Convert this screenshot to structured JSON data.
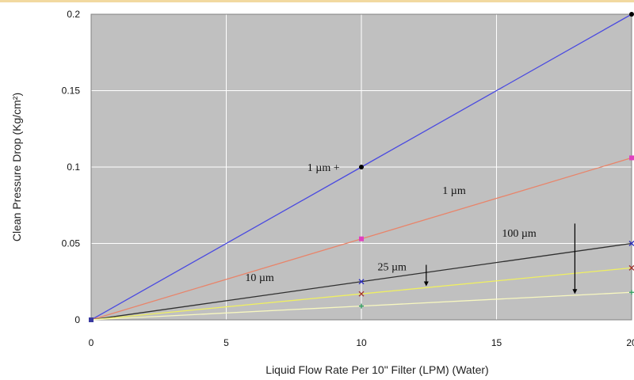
{
  "chart_data": {
    "type": "line",
    "title": "",
    "xlabel": "Liquid Flow Rate Per 10\" Filter  (LPM) (Water)",
    "ylabel": "Clean Pressure Drop (Kg/cm²)",
    "xlim": [
      0,
      20
    ],
    "ylim": [
      0,
      0.2
    ],
    "xticks": [
      0,
      5,
      10,
      15,
      20
    ],
    "xtick_labels": [
      "0",
      "5",
      "10",
      "15",
      "20"
    ],
    "yticks": [
      0,
      0.05,
      0.1,
      0.15,
      0.2
    ],
    "ytick_labels": [
      "0",
      "0.05",
      "0.1",
      "0.15",
      "0.2"
    ],
    "grid": true,
    "plot_background": "#c0c0c0",
    "series": [
      {
        "color": "#4a4ae0",
        "marker": "circle",
        "marker_color": "#000000",
        "x": [
          0,
          10,
          20
        ],
        "y": [
          0,
          0.1,
          0.2
        ]
      },
      {
        "color": "#e8846a",
        "marker": "square",
        "marker_color": "#e040c0",
        "x": [
          0,
          10,
          20
        ],
        "y": [
          0,
          0.053,
          0.106
        ]
      },
      {
        "color": "#303030",
        "marker": "x",
        "marker_color": "#3030c0",
        "x": [
          0,
          10,
          20
        ],
        "y": [
          0,
          0.025,
          0.05
        ]
      },
      {
        "color": "#f0f060",
        "marker": "x",
        "marker_color": "#a03030",
        "x": [
          0,
          10,
          20
        ],
        "y": [
          0,
          0.017,
          0.034
        ]
      },
      {
        "color": "#f8f8c0",
        "marker": "plus",
        "marker_color": "#30a060",
        "x": [
          0,
          10,
          20
        ],
        "y": [
          0,
          0.009,
          0.018
        ]
      }
    ],
    "annotations": [
      {
        "text": "1 µm +",
        "x": 8.0,
        "y": 0.1
      },
      {
        "text": "1 µm",
        "x": 13.0,
        "y": 0.085
      },
      {
        "text": "10 µm",
        "x": 5.7,
        "y": 0.028
      },
      {
        "text": "25 µm",
        "x": 10.6,
        "y": 0.035
      },
      {
        "text": "100 µm",
        "x": 15.2,
        "y": 0.057
      }
    ],
    "arrows": [
      {
        "x": 12.4,
        "y_from": 0.036,
        "y_to": 0.022
      },
      {
        "x": 17.9,
        "y_from": 0.063,
        "y_to": 0.017
      }
    ]
  }
}
